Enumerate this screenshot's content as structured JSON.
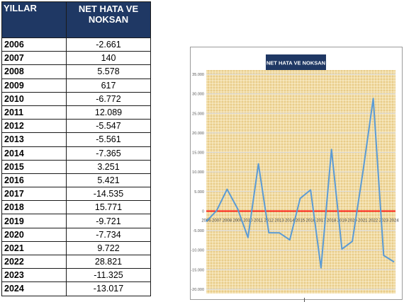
{
  "table": {
    "headers": [
      "YILLAR",
      "NET HATA VE NOKSAN"
    ],
    "rows": [
      {
        "year": "2006",
        "value": "-2.661"
      },
      {
        "year": "2007",
        "value": "140"
      },
      {
        "year": "2008",
        "value": "5.578"
      },
      {
        "year": "2009",
        "value": "617"
      },
      {
        "year": "2010",
        "value": "-6.772"
      },
      {
        "year": "2011",
        "value": "12.089"
      },
      {
        "year": "2012",
        "value": "-5.547"
      },
      {
        "year": "2013",
        "value": "-5.561"
      },
      {
        "year": "2014",
        "value": "-7.365"
      },
      {
        "year": "2015",
        "value": "3.251"
      },
      {
        "year": "2016",
        "value": "5.421"
      },
      {
        "year": "2017",
        "value": "-14.535"
      },
      {
        "year": "2018",
        "value": "15.771"
      },
      {
        "year": "2019",
        "value": "-9.721"
      },
      {
        "year": "2020",
        "value": "-7.734"
      },
      {
        "year": "2021",
        "value": "9.722"
      },
      {
        "year": "2022",
        "value": "28.821"
      },
      {
        "year": "2023",
        "value": "-11.325"
      },
      {
        "year": "2024",
        "value": "-13.017"
      }
    ]
  },
  "chart_data": {
    "type": "line",
    "title": "NET HATA VE NOKSAN",
    "x": [
      "2006",
      "2007",
      "2008",
      "2009",
      "2010",
      "2011",
      "2012",
      "2013",
      "2014",
      "2015",
      "2016",
      "2017",
      "2018",
      "2019",
      "2020",
      "2021",
      "2022",
      "2023",
      "2024"
    ],
    "values": [
      -2661,
      140,
      5578,
      617,
      -6772,
      12089,
      -5547,
      -5561,
      -7365,
      3251,
      5421,
      -14535,
      15771,
      -9721,
      -7734,
      9722,
      28821,
      -11325,
      -13017
    ],
    "ylim": [
      -20000,
      35000
    ],
    "yticks": [
      35000,
      30000,
      25000,
      20000,
      15000,
      10000,
      5000,
      0,
      -5000,
      -10000,
      -15000,
      -20000
    ],
    "ytick_labels": [
      "35.000",
      "30.000",
      "25.000",
      "20.000",
      "15.000",
      "10.000",
      "5.000",
      "0",
      "-5.000",
      "-10.000",
      "-15.000",
      "-20.000"
    ],
    "grid": true,
    "colors": {
      "line": "#5b9bd5",
      "zero_line": "#ff0000",
      "title_bg": "#1f3864",
      "plot_bg": "#f0d9a0"
    }
  }
}
